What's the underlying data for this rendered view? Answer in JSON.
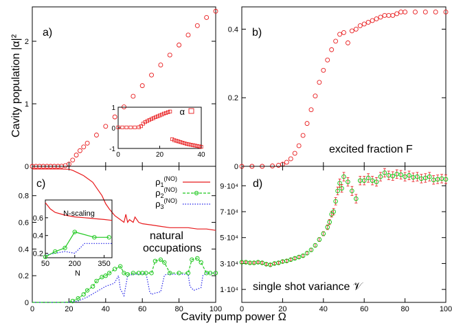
{
  "figure": {
    "x_axis_label": "Cavity pump power Ω",
    "y_axis_label_top": "Cavity population |α|²"
  },
  "colors": {
    "red": "#e8191b",
    "green": "#1ec81e",
    "blue": "#1f1fe8",
    "errorbar": "#e8191b"
  },
  "chart_data": [
    {
      "id": "a",
      "panel_label": "a)",
      "type": "scatter",
      "marker": "circle-open",
      "xlim": [
        0,
        100
      ],
      "ylim": [
        0,
        2.55
      ],
      "yticks": [
        "0",
        "1",
        "2"
      ],
      "ytick_values": [
        0,
        1,
        2
      ],
      "series": [
        {
          "name": "",
          "color": "#e8191b",
          "x": [
            0,
            2,
            4,
            6,
            8,
            10,
            12,
            14,
            16,
            18,
            20,
            22,
            24,
            26,
            28,
            30,
            35,
            40,
            45,
            50,
            55,
            60,
            65,
            70,
            75,
            80,
            85,
            90,
            95,
            100
          ],
          "y": [
            0,
            0,
            0,
            0,
            0,
            0,
            0,
            0,
            0.002,
            0.01,
            0.035,
            0.1,
            0.18,
            0.25,
            0.31,
            0.37,
            0.5,
            0.64,
            0.79,
            0.95,
            1.12,
            1.29,
            1.46,
            1.62,
            1.78,
            1.94,
            2.1,
            2.25,
            2.38,
            2.48
          ]
        }
      ],
      "inset": {
        "type": "scatter",
        "xlim": [
          0,
          40
        ],
        "ylim": [
          -1,
          1
        ],
        "xticks": [
          "0",
          "20",
          "40"
        ],
        "yticks": [
          "-1",
          "0",
          "1"
        ],
        "legend": "α",
        "series": [
          {
            "name": "α",
            "color": "#e8191b",
            "marker": "square-open",
            "x": [
              0,
              2,
              4,
              6,
              8,
              10,
              11,
              12,
              13,
              14,
              15,
              16,
              17,
              18,
              19,
              20,
              21,
              22,
              23,
              24,
              25,
              26,
              27,
              28,
              29,
              30,
              31,
              32,
              33,
              34,
              35,
              36,
              37,
              38,
              39,
              40
            ],
            "y": [
              0.02,
              0.02,
              0.02,
              0.02,
              0.02,
              0.03,
              0.08,
              0.2,
              0.28,
              0.33,
              0.38,
              0.43,
              0.47,
              0.52,
              0.56,
              0.6,
              0.64,
              0.69,
              0.72,
              0.76,
              0.79,
              -0.55,
              -0.6,
              -0.63,
              -0.66,
              -0.69,
              -0.72,
              -0.75,
              -0.78,
              -0.8,
              -0.82,
              -0.84,
              -0.86,
              -0.88,
              -0.9,
              -0.92
            ]
          }
        ]
      }
    },
    {
      "id": "b",
      "panel_label": "b)",
      "annotation": "excited fraction F",
      "type": "scatter",
      "marker": "circle-open",
      "xlim": [
        0,
        100
      ],
      "ylim": [
        0,
        0.465
      ],
      "yticks": [
        "0",
        "0.2",
        "0.4"
      ],
      "ytick_values": [
        0,
        0.2,
        0.4
      ],
      "series": [
        {
          "name": "",
          "color": "#e8191b",
          "x": [
            0,
            5,
            10,
            15,
            18,
            20,
            22,
            24,
            26,
            28,
            30,
            32,
            34,
            36,
            38,
            40,
            42,
            44,
            46,
            48,
            50,
            52,
            54,
            56,
            58,
            60,
            62,
            64,
            66,
            68,
            70,
            72,
            74,
            76,
            78,
            80,
            85,
            90,
            95,
            100
          ],
          "y": [
            0,
            0,
            0,
            0.001,
            0.003,
            0.006,
            0.012,
            0.022,
            0.038,
            0.06,
            0.09,
            0.125,
            0.165,
            0.205,
            0.245,
            0.28,
            0.31,
            0.34,
            0.365,
            0.385,
            0.39,
            0.36,
            0.395,
            0.4,
            0.41,
            0.415,
            0.42,
            0.425,
            0.43,
            0.435,
            0.44,
            0.44,
            0.44,
            0.445,
            0.45,
            0.45,
            0.45,
            0.45,
            0.45,
            0.45
          ]
        }
      ]
    },
    {
      "id": "c",
      "panel_label": "c)",
      "annotation_lines": [
        "natural",
        "occupations"
      ],
      "type": "line",
      "xlim": [
        0,
        100
      ],
      "ylim": [
        0,
        1.02
      ],
      "xticks": [
        "0",
        "20",
        "40",
        "60",
        "80",
        "100"
      ],
      "yticks": [
        "0",
        "0.2",
        "0.4",
        "0.6",
        "0.8"
      ],
      "ytick_values": [
        0,
        0.2,
        0.4,
        0.6,
        0.8
      ],
      "legend": [
        "ρ",
        "ρ",
        "ρ"
      ],
      "legend_subscripts": [
        "1",
        "2",
        "3"
      ],
      "legend_superscripts": [
        "(NO)",
        "(NO)",
        "(NO)"
      ],
      "series": [
        {
          "name": "ρ1(NO)",
          "color": "#e8191b",
          "style": "solid",
          "x": [
            0,
            5,
            10,
            15,
            20,
            22,
            25,
            28,
            30,
            33,
            35,
            38,
            40,
            42,
            45,
            48,
            50,
            51,
            52,
            53,
            55,
            56,
            58,
            60,
            65,
            70,
            75,
            80,
            85,
            90,
            95,
            100
          ],
          "y": [
            1,
            1,
            1,
            1,
            0.998,
            0.99,
            0.97,
            0.95,
            0.93,
            0.9,
            0.86,
            0.8,
            0.74,
            0.7,
            0.65,
            0.62,
            0.6,
            0.66,
            0.6,
            0.62,
            0.6,
            0.64,
            0.6,
            0.59,
            0.58,
            0.57,
            0.56,
            0.56,
            0.56,
            0.55,
            0.55,
            0.54
          ]
        },
        {
          "name": "ρ2(NO)",
          "color": "#1ec81e",
          "style": "dashed-circle",
          "x": [
            0,
            5,
            10,
            15,
            20,
            22,
            25,
            28,
            30,
            33,
            35,
            38,
            40,
            42,
            45,
            48,
            50,
            52,
            55,
            58,
            60,
            62,
            65,
            67,
            70,
            72,
            75,
            80,
            85,
            87,
            90,
            92,
            95,
            97,
            100
          ],
          "y": [
            0,
            0,
            0,
            0,
            0.002,
            0.01,
            0.03,
            0.06,
            0.09,
            0.12,
            0.16,
            0.19,
            0.2,
            0.22,
            0.25,
            0.27,
            0.22,
            0.21,
            0.22,
            0.22,
            0.22,
            0.22,
            0.22,
            0.31,
            0.32,
            0.3,
            0.22,
            0.22,
            0.22,
            0.32,
            0.33,
            0.3,
            0.22,
            0.22,
            0.22
          ]
        },
        {
          "name": "ρ3(NO)",
          "color": "#1f1fe8",
          "style": "dotted",
          "x": [
            0,
            5,
            10,
            15,
            20,
            25,
            30,
            35,
            40,
            44,
            45,
            47,
            48,
            50,
            52,
            55,
            58,
            60,
            62,
            64,
            65,
            67,
            70,
            72,
            73,
            75,
            80,
            85,
            86,
            88,
            90,
            92,
            93,
            95,
            100
          ],
          "y": [
            0,
            0,
            0,
            0,
            0.001,
            0.01,
            0.04,
            0.08,
            0.12,
            0.14,
            0.15,
            0.2,
            0.1,
            0.05,
            0.2,
            0.21,
            0.21,
            0.21,
            0.22,
            0.08,
            0.06,
            0.07,
            0.08,
            0.2,
            0.21,
            0.21,
            0.21,
            0.21,
            0.12,
            0.09,
            0.1,
            0.11,
            0.2,
            0.22,
            0.22
          ]
        }
      ],
      "inset": {
        "title": "N-scaling",
        "type": "line",
        "xlabel": "N",
        "xlim": [
          50,
          390
        ],
        "ylim": [
          0.15,
          0.8
        ],
        "xticks": [
          "50",
          "200",
          "350"
        ],
        "xtick_values": [
          50,
          200,
          350
        ],
        "yticks": [
          "0.2",
          "0.4",
          "0.6"
        ],
        "ytick_values": [
          0.2,
          0.4,
          0.6
        ],
        "series": [
          {
            "name": "ρ1(NO)",
            "color": "#e8191b",
            "style": "solid",
            "x": [
              50,
              75,
              100,
              150,
              200,
              250,
              300,
              350,
              390
            ],
            "y": [
              0.77,
              0.7,
              0.66,
              0.63,
              0.61,
              0.6,
              0.59,
              0.58,
              0.57
            ]
          },
          {
            "name": "ρ2(NO)",
            "color": "#1ec81e",
            "style": "dashed-circle",
            "x": [
              50,
              100,
              150,
              200,
              300,
              375
            ],
            "y": [
              0.16,
              0.22,
              0.26,
              0.44,
              0.38,
              0.38
            ]
          },
          {
            "name": "ρ3(NO)",
            "color": "#1f1fe8",
            "style": "dotted",
            "x": [
              50,
              100,
              150,
              200,
              250,
              300,
              390
            ],
            "y": [
              0.18,
              0.2,
              0.22,
              0.2,
              0.31,
              0.31,
              0.31
            ]
          }
        ]
      }
    },
    {
      "id": "d",
      "panel_label": "d)",
      "annotation": "single shot variance 𝒱",
      "type": "scatter",
      "marker": "circle-open-errorbar",
      "xlim": [
        0,
        100
      ],
      "ylim": [
        0,
        105000
      ],
      "xticks": [
        "0",
        "20",
        "40",
        "60",
        "80",
        "100"
      ],
      "yticks": [
        "1·10⁴",
        "3·10⁴",
        "5·10⁴",
        "7·10⁴",
        "9·10⁴"
      ],
      "ytick_values": [
        10000,
        30000,
        50000,
        70000,
        90000
      ],
      "series": [
        {
          "name": "",
          "color": "#1ec81e",
          "x": [
            0,
            2,
            4,
            6,
            8,
            10,
            12,
            14,
            16,
            18,
            20,
            22,
            24,
            26,
            28,
            30,
            32,
            34,
            36,
            38,
            40,
            42,
            43,
            44,
            45,
            46,
            47,
            48,
            49,
            50,
            52,
            54,
            56,
            58,
            60,
            62,
            64,
            66,
            68,
            70,
            72,
            74,
            76,
            78,
            80,
            82,
            84,
            86,
            88,
            90,
            92,
            94,
            96,
            98,
            100
          ],
          "y": [
            31000,
            31000,
            30500,
            30500,
            31000,
            30500,
            29500,
            29000,
            30000,
            30500,
            31500,
            32000,
            33000,
            34000,
            35000,
            36000,
            38000,
            40500,
            44000,
            48500,
            53000,
            58000,
            62000,
            68000,
            70000,
            78000,
            86000,
            92000,
            88000,
            97000,
            93000,
            86000,
            80000,
            94000,
            94000,
            96000,
            94000,
            93000,
            97000,
            100000,
            98000,
            97500,
            99000,
            98500,
            97000,
            98000,
            96500,
            97000,
            95500,
            96000,
            97000,
            94500,
            95000,
            95500,
            95000
          ],
          "err": [
            800,
            800,
            800,
            800,
            800,
            900,
            900,
            900,
            900,
            900,
            1000,
            1000,
            1000,
            1000,
            1100,
            1100,
            1200,
            1300,
            1400,
            1500,
            1600,
            1800,
            2000,
            2200,
            2500,
            2800,
            3000,
            3200,
            3000,
            3300,
            3300,
            3500,
            3300,
            3300,
            3300,
            3300,
            3300,
            3300,
            3300,
            3300,
            3300,
            3300,
            3300,
            3300,
            3300,
            3300,
            3300,
            3300,
            3300,
            3300,
            3300,
            3300,
            3300,
            3300,
            3300
          ]
        }
      ]
    }
  ]
}
